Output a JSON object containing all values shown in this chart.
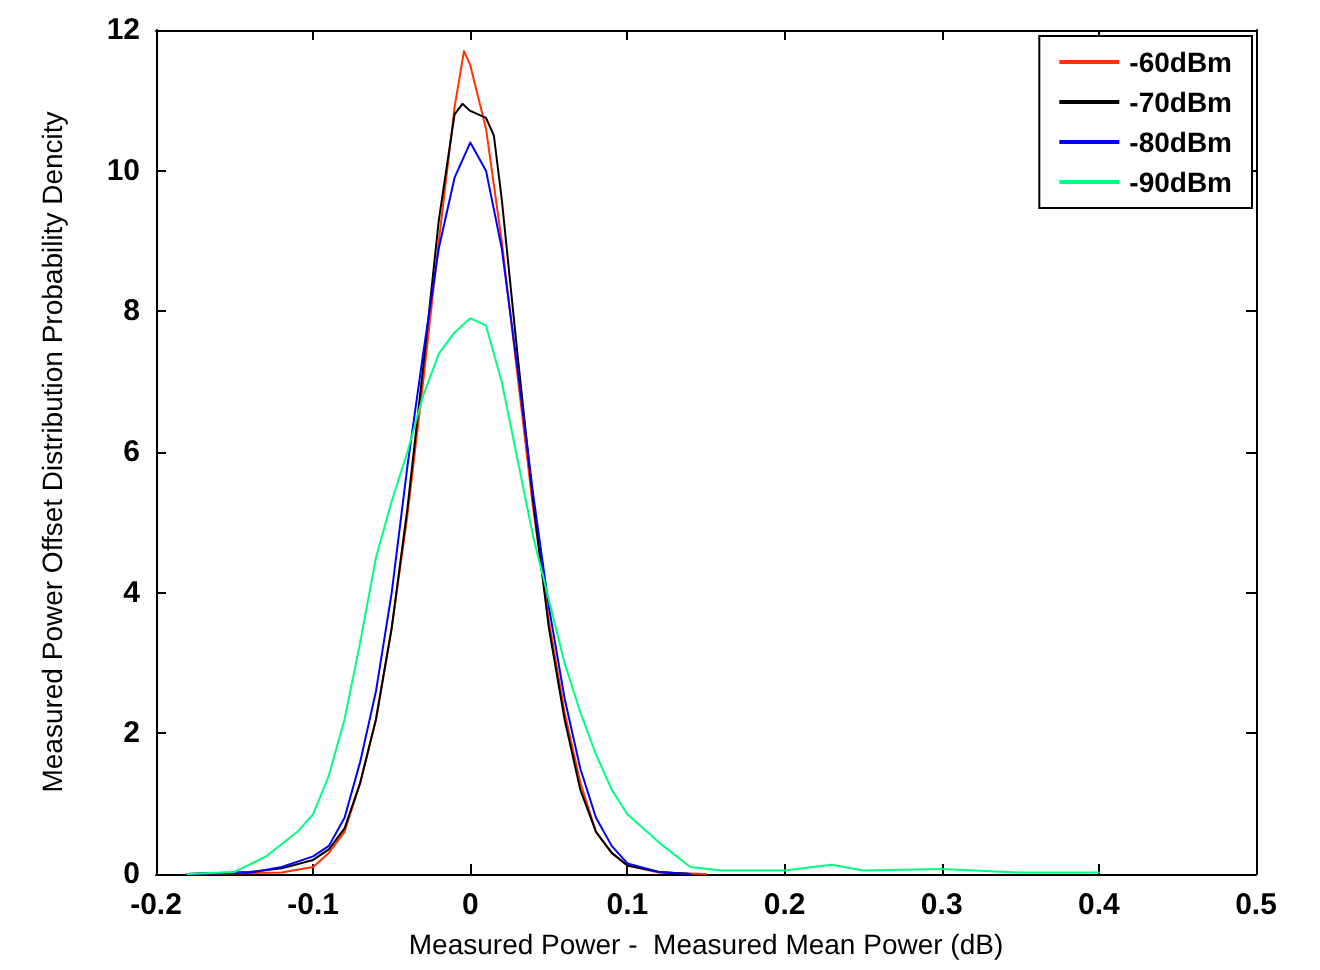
{
  "chart_data": {
    "type": "line",
    "xlabel": "Measured Power -  Measured Mean Power (dB)",
    "ylabel": "Measured Power Offset Distribution Probability Dencity",
    "xlim": [
      -0.2,
      0.5
    ],
    "xticks": [
      -0.2,
      -0.1,
      0,
      0.1,
      0.2,
      0.3,
      0.4,
      0.5
    ],
    "ylim": [
      0,
      12
    ],
    "yticks": [
      0,
      2,
      4,
      6,
      8,
      10,
      12
    ],
    "grid": false,
    "legend": "top right",
    "marker": "none",
    "line_style": "solid",
    "series": [
      {
        "name": "-60dBm",
        "color": "#ff3300",
        "x": [
          -0.18,
          -0.12,
          -0.1,
          -0.09,
          -0.08,
          -0.07,
          -0.06,
          -0.05,
          -0.04,
          -0.03,
          -0.02,
          -0.01,
          -0.004,
          0,
          0.01,
          0.02,
          0.03,
          0.04,
          0.05,
          0.06,
          0.07,
          0.08,
          0.09,
          0.1,
          0.12,
          0.15
        ],
        "values": [
          0,
          0.02,
          0.1,
          0.3,
          0.6,
          1.3,
          2.2,
          3.5,
          5.1,
          7.0,
          9.0,
          10.9,
          11.7,
          11.5,
          10.6,
          9.0,
          7.1,
          5.2,
          3.6,
          2.3,
          1.3,
          0.6,
          0.3,
          0.12,
          0.02,
          0
        ]
      },
      {
        "name": "-70dBm",
        "color": "#000000",
        "x": [
          -0.18,
          -0.14,
          -0.12,
          -0.1,
          -0.09,
          -0.08,
          -0.07,
          -0.06,
          -0.05,
          -0.04,
          -0.03,
          -0.02,
          -0.01,
          -0.005,
          0,
          0.01,
          0.015,
          0.02,
          0.03,
          0.04,
          0.05,
          0.06,
          0.07,
          0.08,
          0.09,
          0.1,
          0.12,
          0.14
        ],
        "values": [
          0,
          0.03,
          0.08,
          0.2,
          0.35,
          0.65,
          1.3,
          2.2,
          3.5,
          5.2,
          7.2,
          9.3,
          10.8,
          10.95,
          10.85,
          10.75,
          10.5,
          9.6,
          7.4,
          5.3,
          3.5,
          2.2,
          1.2,
          0.6,
          0.3,
          0.12,
          0.03,
          0
        ]
      },
      {
        "name": "-80dBm",
        "color": "#0000ff",
        "x": [
          -0.18,
          -0.14,
          -0.12,
          -0.1,
          -0.09,
          -0.08,
          -0.07,
          -0.06,
          -0.05,
          -0.04,
          -0.03,
          -0.02,
          -0.01,
          0,
          0.01,
          0.02,
          0.03,
          0.04,
          0.05,
          0.06,
          0.07,
          0.08,
          0.09,
          0.1,
          0.12,
          0.14
        ],
        "values": [
          0,
          0.02,
          0.1,
          0.25,
          0.4,
          0.8,
          1.6,
          2.6,
          4.0,
          5.8,
          7.4,
          8.9,
          9.9,
          10.4,
          10.0,
          8.9,
          7.2,
          5.4,
          3.8,
          2.5,
          1.5,
          0.8,
          0.4,
          0.15,
          0.03,
          0
        ]
      },
      {
        "name": "-90dBm",
        "color": "#00ff80",
        "x": [
          -0.18,
          -0.15,
          -0.13,
          -0.11,
          -0.1,
          -0.09,
          -0.08,
          -0.07,
          -0.06,
          -0.05,
          -0.04,
          -0.03,
          -0.02,
          -0.01,
          0,
          0.01,
          0.02,
          0.03,
          0.04,
          0.05,
          0.06,
          0.07,
          0.08,
          0.09,
          0.1,
          0.12,
          0.14,
          0.16,
          0.2,
          0.23,
          0.25,
          0.3,
          0.35,
          0.4
        ],
        "values": [
          0,
          0.03,
          0.25,
          0.6,
          0.85,
          1.4,
          2.2,
          3.3,
          4.5,
          5.3,
          6.0,
          6.8,
          7.4,
          7.7,
          7.9,
          7.8,
          7.0,
          5.9,
          4.8,
          3.9,
          3.0,
          2.3,
          1.7,
          1.2,
          0.85,
          0.45,
          0.1,
          0.05,
          0.05,
          0.13,
          0.05,
          0.07,
          0.02,
          0.02
        ]
      }
    ]
  }
}
